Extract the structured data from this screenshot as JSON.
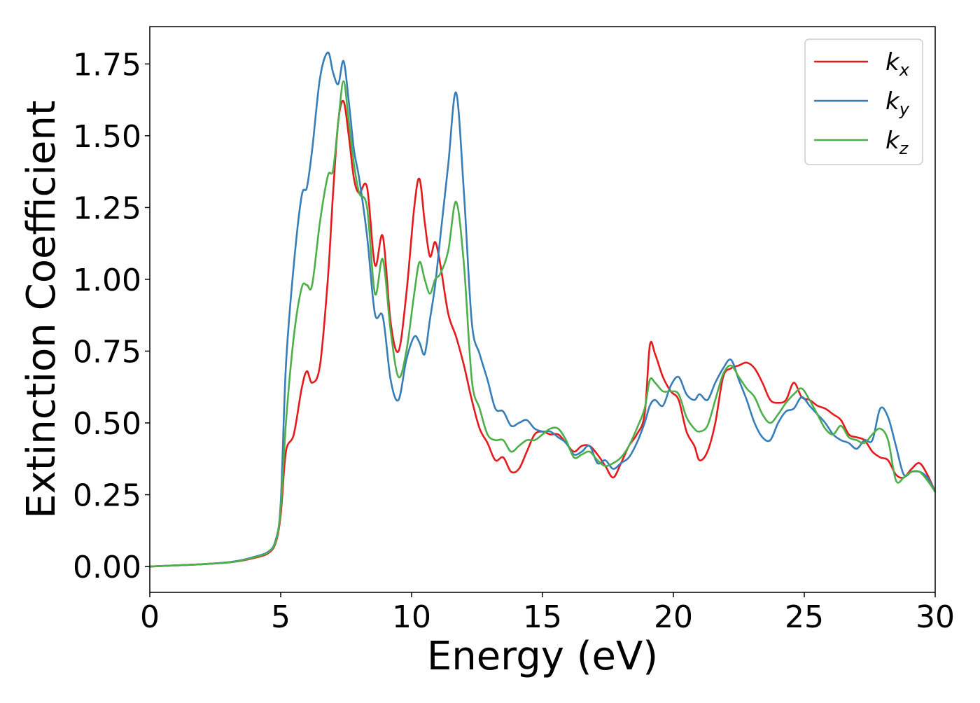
{
  "chart_data": {
    "type": "line",
    "xlabel": "Energy (eV)",
    "ylabel": "Extinction Coefficient",
    "xlim": [
      0,
      30
    ],
    "ylim": [
      -0.09,
      1.88
    ],
    "xticks": [
      "0",
      "5",
      "10",
      "15",
      "20",
      "25",
      "30"
    ],
    "yticks": [
      "0.00",
      "0.25",
      "0.50",
      "0.75",
      "1.00",
      "1.25",
      "1.50",
      "1.75"
    ],
    "grid": false,
    "legend_position": "top-right",
    "series": [
      {
        "name": "k",
        "subscript": "x",
        "color": "#e41a1c",
        "x": [
          0,
          1,
          2,
          3,
          3.5,
          4,
          4.5,
          4.8,
          5.0,
          5.2,
          5.5,
          5.8,
          6.0,
          6.2,
          6.5,
          6.8,
          7.0,
          7.2,
          7.4,
          7.6,
          7.8,
          8.0,
          8.3,
          8.6,
          8.9,
          9.2,
          9.5,
          9.8,
          10.1,
          10.3,
          10.5,
          10.7,
          10.9,
          11.1,
          11.4,
          11.7,
          12.0,
          12.3,
          12.6,
          12.9,
          13.2,
          13.5,
          13.8,
          14.1,
          14.4,
          14.7,
          15.0,
          15.3,
          15.6,
          15.9,
          16.2,
          16.5,
          16.8,
          17.1,
          17.4,
          17.7,
          18.0,
          18.3,
          18.6,
          18.9,
          19.1,
          19.3,
          19.6,
          19.9,
          20.2,
          20.5,
          20.8,
          21.0,
          21.3,
          21.6,
          21.9,
          22.2,
          22.5,
          22.8,
          23.1,
          23.4,
          23.7,
          24.0,
          24.3,
          24.6,
          24.9,
          25.2,
          25.5,
          25.8,
          26.1,
          26.4,
          26.7,
          27.0,
          27.3,
          27.6,
          27.9,
          28.2,
          28.5,
          28.8,
          29.1,
          29.4,
          29.7,
          30
        ],
        "y": [
          0,
          0.004,
          0.008,
          0.014,
          0.02,
          0.03,
          0.045,
          0.08,
          0.18,
          0.4,
          0.46,
          0.62,
          0.68,
          0.64,
          0.7,
          1.0,
          1.3,
          1.55,
          1.62,
          1.5,
          1.35,
          1.3,
          1.32,
          1.05,
          1.15,
          0.85,
          0.75,
          0.95,
          1.25,
          1.35,
          1.2,
          1.08,
          1.13,
          1.05,
          0.88,
          0.8,
          0.7,
          0.58,
          0.48,
          0.43,
          0.37,
          0.38,
          0.33,
          0.34,
          0.4,
          0.46,
          0.47,
          0.46,
          0.46,
          0.43,
          0.4,
          0.42,
          0.42,
          0.39,
          0.35,
          0.31,
          0.36,
          0.42,
          0.46,
          0.53,
          0.77,
          0.74,
          0.66,
          0.61,
          0.58,
          0.47,
          0.42,
          0.37,
          0.4,
          0.5,
          0.66,
          0.69,
          0.7,
          0.71,
          0.69,
          0.64,
          0.58,
          0.57,
          0.58,
          0.64,
          0.59,
          0.58,
          0.56,
          0.55,
          0.53,
          0.51,
          0.46,
          0.45,
          0.44,
          0.4,
          0.38,
          0.37,
          0.32,
          0.31,
          0.34,
          0.36,
          0.32,
          0.26
        ]
      },
      {
        "name": "k",
        "subscript": "y",
        "color": "#377eb8",
        "x": [
          0,
          1,
          2,
          3,
          3.5,
          4,
          4.5,
          4.8,
          5.0,
          5.2,
          5.5,
          5.8,
          6.0,
          6.2,
          6.5,
          6.8,
          7.0,
          7.2,
          7.4,
          7.6,
          7.8,
          8.0,
          8.3,
          8.6,
          8.9,
          9.2,
          9.5,
          9.8,
          10.1,
          10.3,
          10.5,
          10.7,
          10.9,
          11.1,
          11.4,
          11.7,
          12.0,
          12.3,
          12.6,
          12.9,
          13.2,
          13.5,
          13.8,
          14.1,
          14.4,
          14.7,
          15.0,
          15.3,
          15.6,
          15.9,
          16.2,
          16.5,
          16.8,
          17.1,
          17.4,
          17.7,
          18.0,
          18.3,
          18.6,
          18.9,
          19.1,
          19.3,
          19.6,
          19.9,
          20.2,
          20.5,
          20.8,
          21.0,
          21.3,
          21.6,
          21.9,
          22.2,
          22.5,
          22.8,
          23.1,
          23.4,
          23.7,
          24.0,
          24.3,
          24.6,
          24.9,
          25.2,
          25.5,
          25.8,
          26.1,
          26.4,
          26.7,
          27.0,
          27.3,
          27.6,
          27.9,
          28.2,
          28.5,
          28.8,
          29.1,
          29.4,
          29.7,
          30
        ],
        "y": [
          0,
          0.004,
          0.008,
          0.015,
          0.022,
          0.034,
          0.05,
          0.09,
          0.22,
          0.7,
          1.05,
          1.29,
          1.32,
          1.45,
          1.7,
          1.79,
          1.72,
          1.68,
          1.76,
          1.62,
          1.45,
          1.35,
          1.15,
          0.88,
          0.87,
          0.65,
          0.58,
          0.72,
          0.8,
          0.78,
          0.74,
          0.86,
          0.98,
          1.15,
          1.4,
          1.65,
          1.3,
          0.85,
          0.74,
          0.65,
          0.55,
          0.54,
          0.49,
          0.5,
          0.51,
          0.48,
          0.47,
          0.47,
          0.45,
          0.43,
          0.39,
          0.4,
          0.42,
          0.36,
          0.37,
          0.34,
          0.36,
          0.38,
          0.43,
          0.5,
          0.56,
          0.58,
          0.56,
          0.63,
          0.66,
          0.6,
          0.58,
          0.6,
          0.58,
          0.64,
          0.69,
          0.72,
          0.65,
          0.58,
          0.5,
          0.45,
          0.44,
          0.5,
          0.54,
          0.55,
          0.59,
          0.56,
          0.53,
          0.5,
          0.46,
          0.44,
          0.43,
          0.41,
          0.44,
          0.44,
          0.55,
          0.52,
          0.42,
          0.32,
          0.33,
          0.33,
          0.31,
          0.26
        ]
      },
      {
        "name": "k",
        "subscript": "z",
        "color": "#4daf4a",
        "x": [
          0,
          1,
          2,
          3,
          3.5,
          4,
          4.5,
          4.8,
          5.0,
          5.2,
          5.5,
          5.8,
          6.0,
          6.2,
          6.5,
          6.8,
          7.0,
          7.2,
          7.4,
          7.6,
          7.8,
          8.0,
          8.3,
          8.6,
          8.9,
          9.2,
          9.5,
          9.8,
          10.1,
          10.3,
          10.5,
          10.7,
          10.9,
          11.1,
          11.4,
          11.7,
          12.0,
          12.3,
          12.6,
          12.9,
          13.2,
          13.5,
          13.8,
          14.1,
          14.4,
          14.7,
          15.0,
          15.3,
          15.6,
          15.9,
          16.2,
          16.5,
          16.8,
          17.1,
          17.4,
          17.7,
          18.0,
          18.3,
          18.6,
          18.9,
          19.1,
          19.3,
          19.6,
          19.9,
          20.2,
          20.5,
          20.8,
          21.0,
          21.3,
          21.6,
          21.9,
          22.2,
          22.5,
          22.8,
          23.1,
          23.4,
          23.7,
          24.0,
          24.3,
          24.6,
          24.9,
          25.2,
          25.5,
          25.8,
          26.1,
          26.4,
          26.7,
          27.0,
          27.3,
          27.6,
          27.9,
          28.2,
          28.5,
          28.8,
          29.1,
          29.4,
          29.7,
          30
        ],
        "y": [
          0,
          0.004,
          0.008,
          0.014,
          0.021,
          0.032,
          0.048,
          0.085,
          0.2,
          0.5,
          0.8,
          0.97,
          0.98,
          0.98,
          1.2,
          1.36,
          1.38,
          1.55,
          1.69,
          1.55,
          1.4,
          1.3,
          1.25,
          0.95,
          1.07,
          0.82,
          0.66,
          0.75,
          0.95,
          1.06,
          1.0,
          0.95,
          1.0,
          1.02,
          1.1,
          1.27,
          1.05,
          0.65,
          0.55,
          0.46,
          0.44,
          0.44,
          0.4,
          0.42,
          0.44,
          0.44,
          0.46,
          0.48,
          0.48,
          0.44,
          0.38,
          0.39,
          0.4,
          0.37,
          0.35,
          0.36,
          0.38,
          0.42,
          0.48,
          0.55,
          0.65,
          0.64,
          0.61,
          0.61,
          0.6,
          0.52,
          0.48,
          0.47,
          0.49,
          0.58,
          0.67,
          0.7,
          0.66,
          0.62,
          0.59,
          0.53,
          0.5,
          0.53,
          0.57,
          0.6,
          0.62,
          0.58,
          0.53,
          0.48,
          0.46,
          0.49,
          0.45,
          0.44,
          0.43,
          0.46,
          0.48,
          0.44,
          0.3,
          0.31,
          0.33,
          0.33,
          0.3,
          0.26
        ]
      }
    ]
  }
}
